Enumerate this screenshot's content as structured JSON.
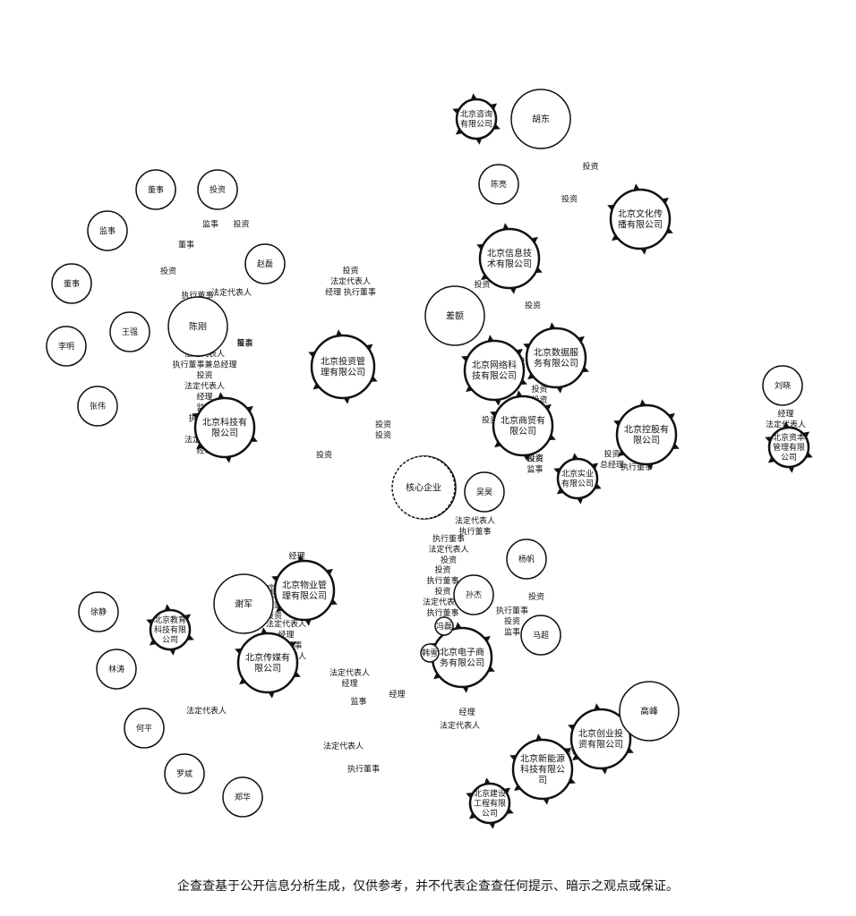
{
  "nodes": [
    {
      "id": "n1",
      "label": "董事",
      "kind": "person"
    },
    {
      "id": "n2",
      "label": "投资",
      "kind": "person"
    },
    {
      "id": "n3",
      "label": "监事",
      "kind": "person"
    },
    {
      "id": "n4",
      "label": "董事",
      "kind": "person"
    },
    {
      "id": "n5",
      "label": "李明",
      "kind": "person"
    },
    {
      "id": "n6",
      "label": "张伟",
      "kind": "person"
    },
    {
      "id": "n7",
      "label": "王强",
      "kind": "person"
    },
    {
      "id": "n8",
      "label": "陈刚",
      "kind": "person"
    },
    {
      "id": "n9",
      "label": "赵磊",
      "kind": "person"
    },
    {
      "id": "n10",
      "label": "北京科技有限公司",
      "kind": "company"
    },
    {
      "id": "n11",
      "label": "北京投资管理有限公司",
      "kind": "company"
    },
    {
      "id": "n12",
      "label": "北京咨询有限公司",
      "kind": "company"
    },
    {
      "id": "n13",
      "label": "胡东",
      "kind": "person"
    },
    {
      "id": "n14",
      "label": "北京文化传播有限公司",
      "kind": "company"
    },
    {
      "id": "n15",
      "label": "陈亮",
      "kind": "person"
    },
    {
      "id": "n16",
      "label": "北京信息技术有限公司",
      "kind": "company"
    },
    {
      "id": "n17",
      "label": "差额",
      "kind": "person"
    },
    {
      "id": "n18",
      "label": "北京网络科技有限公司",
      "kind": "company"
    },
    {
      "id": "n19",
      "label": "北京数据服务有限公司",
      "kind": "company"
    },
    {
      "id": "n20",
      "label": "北京商贸有限公司",
      "kind": "company"
    },
    {
      "id": "n21",
      "label": "北京实业有限公司",
      "kind": "company"
    },
    {
      "id": "n22",
      "label": "北京控股有限公司",
      "kind": "company"
    },
    {
      "id": "n23",
      "label": "刘晓",
      "kind": "person"
    },
    {
      "id": "n24",
      "label": "北京资本管理有限公司",
      "kind": "company"
    },
    {
      "id": "n25",
      "label": "吴昊",
      "kind": "person"
    },
    {
      "id": "n26",
      "label": "周勇",
      "kind": "person"
    },
    {
      "id": "n27",
      "label": "核心企业",
      "kind": "center"
    },
    {
      "id": "n28",
      "label": "孙杰",
      "kind": "person"
    },
    {
      "id": "n29",
      "label": "杨帆",
      "kind": "person"
    },
    {
      "id": "n30",
      "label": "马超",
      "kind": "person"
    },
    {
      "id": "n31",
      "label": "北京电子商务有限公司",
      "kind": "company"
    },
    {
      "id": "n32",
      "label": "北京创业投资有限公司",
      "kind": "company"
    },
    {
      "id": "n33",
      "label": "高峰",
      "kind": "person"
    },
    {
      "id": "n34",
      "label": "北京新能源科技有限公司",
      "kind": "company"
    },
    {
      "id": "n35",
      "label": "徐静",
      "kind": "person"
    },
    {
      "id": "n36",
      "label": "林涛",
      "kind": "person"
    },
    {
      "id": "n37",
      "label": "何平",
      "kind": "person"
    },
    {
      "id": "n38",
      "label": "罗斌",
      "kind": "person"
    },
    {
      "id": "n39",
      "label": "郑华",
      "kind": "person"
    },
    {
      "id": "n40",
      "label": "北京教育科技有限公司",
      "kind": "company"
    },
    {
      "id": "n41",
      "label": "谢军",
      "kind": "person"
    },
    {
      "id": "n42",
      "label": "北京物业管理有限公司",
      "kind": "company"
    },
    {
      "id": "n43",
      "label": "北京传媒有限公司",
      "kind": "company"
    },
    {
      "id": "n44",
      "label": "北京建设工程有限公司",
      "kind": "company"
    },
    {
      "id": "n45",
      "label": "韩雪",
      "kind": "person"
    },
    {
      "id": "n46",
      "label": "冯磊",
      "kind": "person"
    }
  ],
  "edges": [
    {
      "s": "n7",
      "t": "n9",
      "label": "执行董事"
    },
    {
      "s": "n8",
      "t": "n9",
      "label": "法定代表人"
    },
    {
      "s": "n4",
      "t": "n9",
      "label": "投资"
    },
    {
      "s": "n3",
      "t": "n9",
      "label": "董事"
    },
    {
      "s": "n1",
      "t": "n9",
      "label": "监事"
    },
    {
      "s": "n2",
      "t": "n9",
      "label": "投资"
    },
    {
      "s": "n10",
      "t": "n9",
      "label": "投资"
    },
    {
      "s": "n9",
      "t": "n10",
      "label": "董事"
    },
    {
      "s": "n12",
      "t": "n10",
      "label": "投资"
    },
    {
      "s": "n12",
      "t": "n10",
      "label": "法定代表人"
    },
    {
      "s": "n12",
      "t": "n10",
      "label": "经理 执行董事"
    },
    {
      "s": "n5",
      "t": "n11",
      "label": "法定代表人"
    },
    {
      "s": "n5",
      "t": "n11",
      "label": "执行董事兼总经理"
    },
    {
      "s": "n5",
      "t": "n11",
      "label": "投资"
    },
    {
      "s": "n5",
      "t": "n11",
      "label": "法定代表人"
    },
    {
      "s": "n5",
      "t": "n11",
      "label": "经理"
    },
    {
      "s": "n5",
      "t": "n11",
      "label": "监事"
    },
    {
      "s": "n5",
      "t": "n11",
      "label": "执行董事"
    },
    {
      "s": "n5",
      "t": "n11",
      "label": "投资"
    },
    {
      "s": "n5",
      "t": "n11",
      "label": "法定代表人"
    },
    {
      "s": "n5",
      "t": "n11",
      "label": "经理"
    },
    {
      "s": "n11",
      "t": "n27",
      "label": "投资"
    },
    {
      "s": "n11",
      "t": "n27",
      "label": "投资"
    },
    {
      "s": "n12",
      "t": "n27",
      "label": "执行董事"
    },
    {
      "s": "n10",
      "t": "n27",
      "label": "投资"
    },
    {
      "s": "n9",
      "t": "n27",
      "label": "监事"
    },
    {
      "s": "n13",
      "t": "n14",
      "label": "投资"
    },
    {
      "s": "n15",
      "t": "n14",
      "label": "投资"
    },
    {
      "s": "n17",
      "t": "n16",
      "label": "投资"
    },
    {
      "s": "n16",
      "t": "n19",
      "label": "投资"
    },
    {
      "s": "n18",
      "t": "n19",
      "label": "投资"
    },
    {
      "s": "n19",
      "t": "n27",
      "label": "投资"
    },
    {
      "s": "n20",
      "t": "n19",
      "label": "投资"
    },
    {
      "s": "n20",
      "t": "n19",
      "label": "投资"
    },
    {
      "s": "n21",
      "t": "n22",
      "label": "投资"
    },
    {
      "s": "n21",
      "t": "n22",
      "label": "总经理"
    },
    {
      "s": "n22",
      "t": "n27",
      "label": "投资"
    },
    {
      "s": "n22",
      "t": "n27",
      "label": "监事"
    },
    {
      "s": "n23",
      "t": "n24",
      "label": "经理"
    },
    {
      "s": "n23",
      "t": "n24",
      "label": "法定代表人"
    },
    {
      "s": "n23",
      "t": "n24",
      "label": "投资"
    },
    {
      "s": "n25",
      "t": "n24",
      "label": "执行董事"
    },
    {
      "s": "n26",
      "t": "n22",
      "label": "投资"
    },
    {
      "s": "n28",
      "t": "n27",
      "label": "执行董事"
    },
    {
      "s": "n28",
      "t": "n27",
      "label": "法定代表人"
    },
    {
      "s": "n28",
      "t": "n27",
      "label": "投资"
    },
    {
      "s": "n27",
      "t": "n31",
      "label": "投资"
    },
    {
      "s": "n27",
      "t": "n32",
      "label": "执行董事"
    },
    {
      "s": "n27",
      "t": "n32",
      "label": "投资"
    },
    {
      "s": "n27",
      "t": "n32",
      "label": "监事"
    },
    {
      "s": "n27",
      "t": "n31",
      "label": "执行董事"
    },
    {
      "s": "n27",
      "t": "n31",
      "label": "投资"
    },
    {
      "s": "n27",
      "t": "n31",
      "label": "法定代表人"
    },
    {
      "s": "n27",
      "t": "n31",
      "label": "执行董事"
    },
    {
      "s": "n27",
      "t": "n33",
      "label": "投资"
    },
    {
      "s": "n27",
      "t": "n40",
      "label": "经理"
    },
    {
      "s": "n27",
      "t": "n40",
      "label": "监事"
    },
    {
      "s": "n27",
      "t": "n40",
      "label": "投资"
    },
    {
      "s": "n29",
      "t": "n27",
      "label": "法定代表人"
    },
    {
      "s": "n29",
      "t": "n27",
      "label": "执行董事"
    },
    {
      "s": "n27",
      "t": "n40",
      "label": "法定代表人 执行董事"
    },
    {
      "s": "n34",
      "t": "n32",
      "label": "法定代表人"
    },
    {
      "s": "n35",
      "t": "n32",
      "label": "法定代表人"
    },
    {
      "s": "n35",
      "t": "n32",
      "label": "经理"
    },
    {
      "s": "n36",
      "t": "n32",
      "label": "监事"
    },
    {
      "s": "n38",
      "t": "n34",
      "label": "执行董事"
    },
    {
      "s": "n37",
      "t": "n34",
      "label": "法定代表人"
    },
    {
      "s": "n39",
      "t": "n40",
      "label": "法定代表人"
    },
    {
      "s": "n41",
      "t": "n42",
      "label": "总经理"
    },
    {
      "s": "n41",
      "t": "n42",
      "label": "执行董事"
    },
    {
      "s": "n41",
      "t": "n42",
      "label": "投资"
    },
    {
      "s": "n43",
      "t": "n42",
      "label": "法定代表人"
    },
    {
      "s": "n43",
      "t": "n42",
      "label": "经理"
    },
    {
      "s": "n43",
      "t": "n42",
      "label": "执行董事"
    },
    {
      "s": "n43",
      "t": "n42",
      "label": "法定代表人"
    },
    {
      "s": "n44",
      "t": "n42",
      "label": "经理"
    },
    {
      "s": "n45",
      "t": "n44",
      "label": "法定代表人"
    },
    {
      "s": "n46",
      "t": "n44",
      "label": "经理"
    }
  ],
  "footer": {
    "disclaimer": "企查查基于公开信息分析生成，仅供参考，并不代表企查查任何提示、暗示之观点或保证。"
  }
}
